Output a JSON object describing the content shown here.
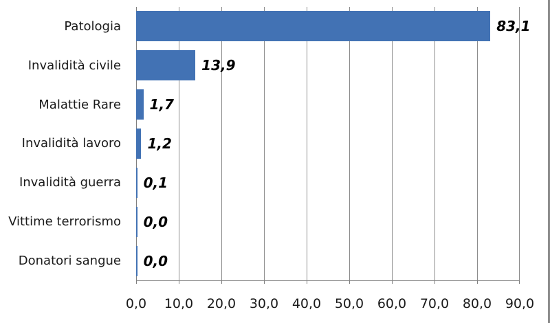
{
  "chart_data": {
    "type": "bar",
    "orientation": "horizontal",
    "title": "",
    "xlabel": "",
    "ylabel": "",
    "categories": [
      "Patologia",
      "Invalidità civile",
      "Malattie Rare",
      "Invalidità lavoro",
      "Invalidità guerra",
      "Vittime terrorismo",
      "Donatori sangue"
    ],
    "values": [
      83.1,
      13.9,
      1.7,
      1.2,
      0.1,
      0.0,
      0.0
    ],
    "value_labels": [
      "83,1",
      "13,9",
      "1,7",
      "1,2",
      "0,1",
      "0,0",
      "0,0"
    ],
    "x_tick_labels": [
      "0,0",
      "10,0",
      "20,0",
      "30,0",
      "40,0",
      "50,0",
      "60,0",
      "70,0",
      "80,0",
      "90,0"
    ],
    "xlim": [
      0,
      90
    ],
    "grid": "vertical-gridlines-on",
    "legend": "none",
    "data_labels_position": "outside-end"
  },
  "colors": {
    "bar": "#4272B4",
    "gridline": "#8C8C8C",
    "axis_line": "#7F7F7F",
    "category_text": "#1A1A1A",
    "value_text": "#000000",
    "axis_text": "#1A1A1A",
    "frame_border": "#8C8C8C",
    "background": "#FFFFFF"
  }
}
